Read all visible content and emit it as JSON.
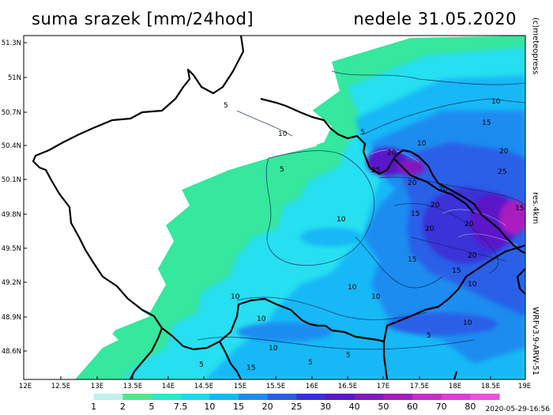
{
  "header": {
    "title": "suma srazek [mm/24hod]",
    "date": "nedele 31.05.2020"
  },
  "side": {
    "credit": "(c)meteopress",
    "resolution": "res.4km",
    "model": "WRFv3.9-ARW-51"
  },
  "footer": {
    "timestamp": "2020-05-29-16:56"
  },
  "axes": {
    "lat_labels": [
      "51.3N",
      "51N",
      "50.7N",
      "50.4N",
      "50.1N",
      "49.8N",
      "49.5N",
      "49.2N",
      "48.9N",
      "48.6N"
    ],
    "lon_labels": [
      "12E",
      "12.5E",
      "13E",
      "13.5E",
      "14E",
      "14.5E",
      "15E",
      "15.5E",
      "16E",
      "16.5E",
      "17E",
      "17.5E",
      "18E",
      "18.5E",
      "19E"
    ]
  },
  "legend": {
    "values": [
      "1",
      "2",
      "5",
      "7.5",
      "10",
      "15",
      "20",
      "25",
      "30",
      "40",
      "50",
      "60",
      "70",
      "80"
    ],
    "colors": [
      "#ffffff",
      "#bff0ee",
      "#4ee88a",
      "#2ee6c8",
      "#22d6f0",
      "#14b8f4",
      "#1c8cf0",
      "#2a5ee8",
      "#3a30d8",
      "#5a18c8",
      "#8418c0",
      "#a81cc0",
      "#c82ec8",
      "#e03cd8",
      "#ee50e0"
    ]
  },
  "contour_labels": [
    "5",
    "10",
    "5",
    "10",
    "15",
    "20",
    "25",
    "20",
    "15",
    "10",
    "5",
    "10",
    "20",
    "20",
    "15",
    "20",
    "15",
    "10",
    "10",
    "10",
    "5",
    "5",
    "10",
    "5",
    "10",
    "15",
    "20",
    "20",
    "20",
    "10",
    "15",
    "5",
    "10",
    "25"
  ],
  "colors": {
    "background": "#ffffff",
    "border": "#000000"
  }
}
